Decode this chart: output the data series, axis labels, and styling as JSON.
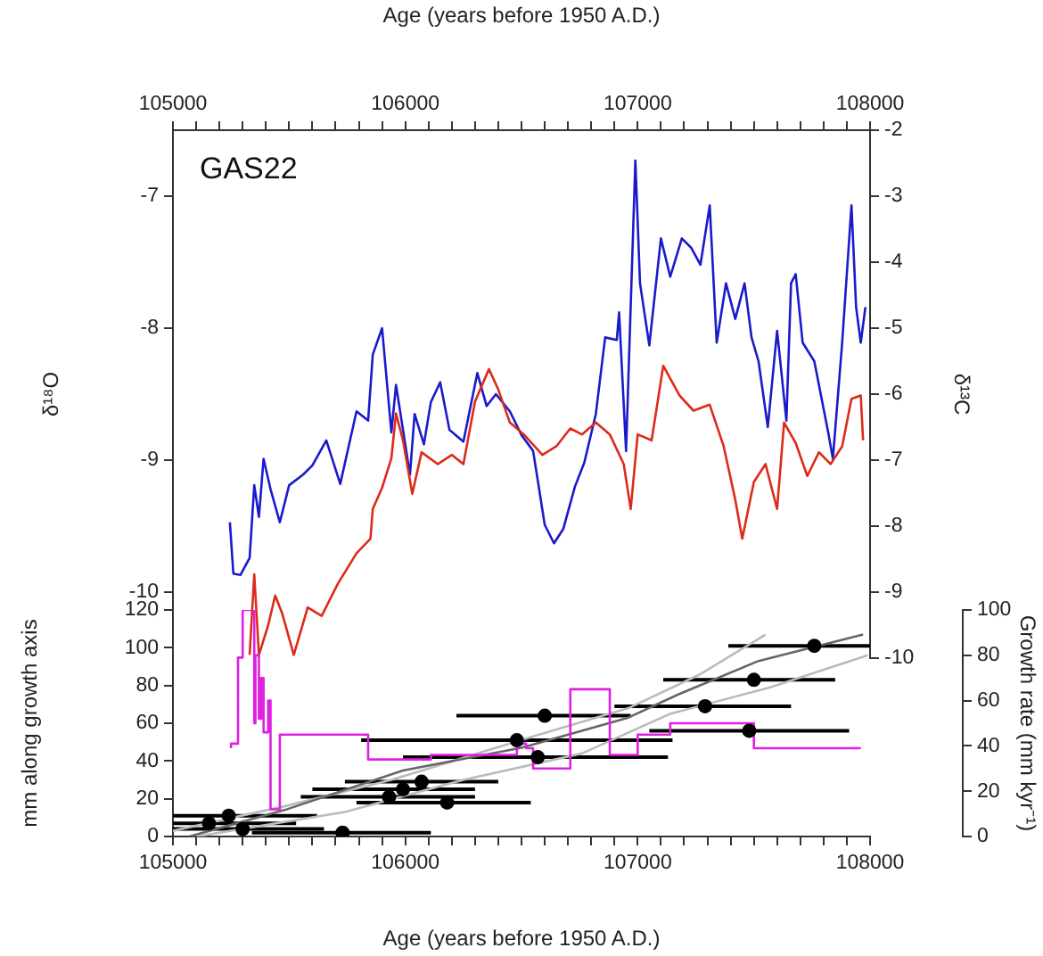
{
  "chart_data": [
    {
      "type": "line",
      "xlabel": "Age (years before 1950 A.D.)",
      "ylabel": "δ¹⁸O",
      "y2label": "δ¹³C",
      "xlim": [
        105000,
        108000
      ],
      "xticks": [
        105000,
        {
          "value": 105100,
          "label": null
        },
        {
          "value": 105200,
          "label": null
        },
        {
          "value": 105300,
          "label": null
        },
        {
          "value": 105400,
          "label": null
        },
        {
          "value": 105500,
          "label": null
        },
        {
          "value": 105600,
          "label": null
        },
        {
          "value": 105700,
          "label": null
        },
        {
          "value": 105800,
          "label": null
        },
        {
          "value": 105900,
          "label": null
        },
        106000,
        {
          "value": 106100,
          "label": null
        },
        {
          "value": 106200,
          "label": null
        },
        {
          "value": 106300,
          "label": null
        },
        {
          "value": 106400,
          "label": null
        },
        {
          "value": 106500,
          "label": null
        },
        {
          "value": 106600,
          "label": null
        },
        {
          "value": 106700,
          "label": null
        },
        {
          "value": 106800,
          "label": null
        },
        {
          "value": 106900,
          "label": null
        },
        107000,
        {
          "value": 107100,
          "label": null
        },
        {
          "value": 107200,
          "label": null
        },
        {
          "value": 107300,
          "label": null
        },
        {
          "value": 107400,
          "label": null
        },
        {
          "value": 107500,
          "label": null
        },
        {
          "value": 107600,
          "label": null
        },
        {
          "value": 107700,
          "label": null
        },
        {
          "value": 107800,
          "label": null
        },
        {
          "value": 107900,
          "label": null
        },
        108000
      ],
      "ylim": [
        -10.5,
        -6.5
      ],
      "yticks": [
        -10,
        -9,
        -8,
        -7
      ],
      "y2lim": [
        -10,
        -2
      ],
      "y2ticks": [
        -10,
        -9,
        -8,
        -7,
        -6,
        -5,
        -4,
        -3,
        -2
      ],
      "annotations": [
        "GAS22"
      ],
      "series": [
        {
          "color": "#1a1acc",
          "x": [
            105245,
            105260,
            105290,
            105330,
            105350,
            105370,
            105390,
            105420,
            105460,
            105500,
            105560,
            105600,
            105660,
            105720,
            105790,
            105840,
            105860,
            105900,
            105940,
            105960,
            106020,
            106040,
            106080,
            106110,
            106150,
            106190,
            106250,
            106310,
            106350,
            106390,
            106450,
            106500,
            106550,
            106600,
            106640,
            106680,
            106730,
            106770,
            106820,
            106860,
            106910,
            106920,
            106950,
            106990,
            107010,
            107050,
            107100,
            107140,
            107190,
            107230,
            107270,
            107310,
            107340,
            107380,
            107420,
            107460,
            107490,
            107520,
            107560,
            107600,
            107640,
            107660,
            107680,
            107710,
            107760,
            107820,
            107840,
            107880,
            107920,
            107940,
            107960,
            107980
          ],
          "values": [
            -9.47,
            -9.86,
            -9.87,
            -9.74,
            -9.19,
            -9.43,
            -8.99,
            -9.22,
            -9.47,
            -9.19,
            -9.11,
            -9.04,
            -8.85,
            -9.18,
            -8.63,
            -8.7,
            -8.2,
            -8.0,
            -8.79,
            -8.43,
            -9.11,
            -8.65,
            -8.88,
            -8.56,
            -8.41,
            -8.77,
            -8.86,
            -8.34,
            -8.59,
            -8.5,
            -8.63,
            -8.81,
            -8.93,
            -9.49,
            -9.63,
            -9.52,
            -9.2,
            -9.02,
            -8.65,
            -8.07,
            -8.09,
            -7.88,
            -8.93,
            -6.73,
            -7.66,
            -8.13,
            -7.32,
            -7.61,
            -7.32,
            -7.39,
            -7.52,
            -7.07,
            -8.11,
            -7.66,
            -7.93,
            -7.66,
            -8.07,
            -8.25,
            -8.75,
            -8.02,
            -8.7,
            -7.66,
            -7.59,
            -8.11,
            -8.25,
            -8.79,
            -8.99,
            -8.11,
            -7.07,
            -7.84,
            -8.11,
            -7.84
          ]
        },
        {
          "color": "#dd2a1a",
          "axis": "y2",
          "x": [
            105330,
            105350,
            105370,
            105410,
            105440,
            105470,
            105520,
            105580,
            105640,
            105710,
            105790,
            105850,
            105860,
            105900,
            105940,
            105960,
            105990,
            106030,
            106070,
            106140,
            106200,
            106250,
            106300,
            106360,
            106400,
            106450,
            106510,
            106590,
            106650,
            106710,
            106760,
            106820,
            106880,
            106940,
            106970,
            107000,
            107060,
            107110,
            107180,
            107240,
            107310,
            107370,
            107420,
            107450,
            107500,
            107550,
            107600,
            107630,
            107680,
            107730,
            107780,
            107830,
            107880,
            107920,
            107960,
            107970
          ],
          "values": [
            -9.95,
            -8.73,
            -9.95,
            -9.5,
            -9.05,
            -9.32,
            -9.95,
            -9.23,
            -9.36,
            -8.87,
            -8.41,
            -8.19,
            -7.74,
            -7.42,
            -6.97,
            -6.29,
            -6.7,
            -7.51,
            -6.88,
            -7.06,
            -6.92,
            -7.06,
            -6.11,
            -5.62,
            -5.93,
            -6.43,
            -6.61,
            -6.92,
            -6.79,
            -6.52,
            -6.61,
            -6.43,
            -6.61,
            -7.06,
            -7.74,
            -6.61,
            -6.7,
            -5.57,
            -6.02,
            -6.25,
            -6.16,
            -6.79,
            -7.6,
            -8.19,
            -7.33,
            -7.06,
            -7.74,
            -6.43,
            -6.74,
            -7.24,
            -6.88,
            -7.06,
            -6.79,
            -6.07,
            -6.02,
            -6.7
          ]
        }
      ]
    },
    {
      "type": "scatter",
      "xlabel": "Age (years before 1950 A.D.)",
      "ylabel": "mm along growth axis",
      "y2label": "Growth rate (mm kyr⁻¹)",
      "xlim": [
        105000,
        108000
      ],
      "xticks": [
        105000,
        {
          "value": 105100,
          "label": null
        },
        {
          "value": 105200,
          "label": null
        },
        {
          "value": 105300,
          "label": null
        },
        {
          "value": 105400,
          "label": null
        },
        {
          "value": 105500,
          "label": null
        },
        {
          "value": 105600,
          "label": null
        },
        {
          "value": 105700,
          "label": null
        },
        {
          "value": 105800,
          "label": null
        },
        {
          "value": 105900,
          "label": null
        },
        106000,
        {
          "value": 106100,
          "label": null
        },
        {
          "value": 106200,
          "label": null
        },
        {
          "value": 106300,
          "label": null
        },
        {
          "value": 106400,
          "label": null
        },
        {
          "value": 106500,
          "label": null
        },
        {
          "value": 106600,
          "label": null
        },
        {
          "value": 106700,
          "label": null
        },
        {
          "value": 106800,
          "label": null
        },
        {
          "value": 106900,
          "label": null
        },
        107000,
        {
          "value": 107100,
          "label": null
        },
        {
          "value": 107200,
          "label": null
        },
        {
          "value": 107300,
          "label": null
        },
        {
          "value": 107400,
          "label": null
        },
        {
          "value": 107500,
          "label": null
        },
        {
          "value": 107600,
          "label": null
        },
        {
          "value": 107700,
          "label": null
        },
        {
          "value": 107800,
          "label": null
        },
        {
          "value": 107900,
          "label": null
        },
        108000
      ],
      "ylim": [
        0,
        120
      ],
      "yticks": [
        0,
        20,
        40,
        60,
        80,
        100,
        120
      ],
      "y2lim": [
        0,
        100
      ],
      "y2ticks": [
        0,
        20,
        40,
        60,
        80,
        100
      ],
      "series": [
        {
          "type": "line",
          "color": "#bbbbbb",
          "x": [
            105000,
            105480,
            105940,
            106550,
            106960,
            107270,
            107550
          ],
          "values": [
            3,
            16,
            30,
            53,
            68,
            86,
            107
          ]
        },
        {
          "type": "line",
          "color": "#bbbbbb",
          "x": [
            105100,
            105740,
            106250,
            106760,
            107140,
            107570,
            107990
          ],
          "values": [
            0,
            13,
            30,
            44,
            65,
            79,
            96
          ]
        },
        {
          "type": "line",
          "color": "#666666",
          "x": [
            105070,
            105480,
            105990,
            106500,
            106960,
            107170,
            107520,
            107970
          ],
          "values": [
            0,
            14,
            35,
            47,
            63,
            75,
            93,
            107
          ]
        },
        {
          "type": "step",
          "color": "#e020e0",
          "axis": "y2",
          "x": [
            105250,
            105280,
            105300,
            105350,
            105355,
            105370,
            105380,
            105390,
            105410,
            105420,
            105460,
            105840,
            106110,
            106480,
            106520,
            106550,
            106710,
            106880,
            107000,
            107140,
            107500,
            107800,
            107960
          ],
          "values": [
            39,
            41,
            79,
            100,
            50,
            80,
            52,
            70,
            46,
            60,
            12,
            45,
            34,
            36,
            41,
            39,
            30,
            65,
            36,
            45,
            50,
            39,
            39
          ]
        },
        {
          "marker": "circle",
          "color": "#000000",
          "x": [
            105155,
            105240,
            105300,
            105730,
            105930,
            105990,
            106070,
            106180,
            106480,
            106570,
            106600,
            107480,
            107290,
            107500,
            107760
          ],
          "values": [
            7,
            11,
            4,
            2,
            21,
            25,
            29,
            18,
            51,
            42,
            64,
            56,
            69,
            83,
            101
          ],
          "xerrors": [
            [
              105000,
              105530
            ],
            [
              105000,
              105620
            ],
            [
              105000,
              105650
            ],
            [
              105340,
              106110
            ],
            [
              105550,
              106300
            ],
            [
              105600,
              106300
            ],
            [
              105740,
              106400
            ],
            [
              105790,
              106540
            ],
            [
              105810,
              107150
            ],
            [
              105990,
              107130
            ],
            [
              106220,
              106970
            ],
            [
              107050,
              107910
            ],
            [
              106900,
              107660
            ],
            [
              107110,
              107850
            ],
            [
              107390,
              108000
            ]
          ]
        }
      ]
    }
  ]
}
